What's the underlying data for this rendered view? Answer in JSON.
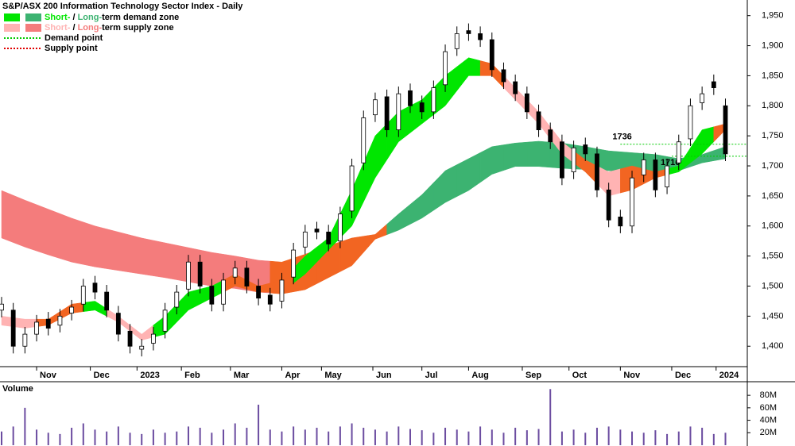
{
  "chart_data": {
    "type": "candlestick",
    "title": "S&P/ASX 200 Information Technology Sector Index - Daily",
    "legend": [
      {
        "parts": [
          "Short-",
          " / ",
          "Long-",
          "term demand zone"
        ],
        "colors": [
          "#00e600",
          "#3cb371"
        ]
      },
      {
        "parts": [
          "Short-",
          " / ",
          "Long-",
          "term supply zone"
        ],
        "colors": [
          "#ffb3b3",
          "#f47c7c"
        ]
      },
      {
        "label": "Demand point",
        "color": "#00cc00"
      },
      {
        "label": "Supply point",
        "color": "#e00000"
      }
    ],
    "xlim": [
      0,
      318
    ],
    "xticks": [
      {
        "value": 15,
        "label": "Nov"
      },
      {
        "value": 38,
        "label": "Dec"
      },
      {
        "value": 58,
        "label": "2023"
      },
      {
        "value": 77,
        "label": "Feb"
      },
      {
        "value": 98,
        "label": "Mar"
      },
      {
        "value": 120,
        "label": "Apr"
      },
      {
        "value": 137,
        "label": "May"
      },
      {
        "value": 159,
        "label": "Jun"
      },
      {
        "value": 180,
        "label": "Jul"
      },
      {
        "value": 200,
        "label": "Aug"
      },
      {
        "value": 223,
        "label": "Sep"
      },
      {
        "value": 243,
        "label": "Oct"
      },
      {
        "value": 265,
        "label": "Nov"
      },
      {
        "value": 287,
        "label": "Dec"
      },
      {
        "value": 306,
        "label": "2024"
      }
    ],
    "ylim": [
      1366,
      1976
    ],
    "yticks": [
      {
        "value": 1400,
        "label": "1,400"
      },
      {
        "value": 1450,
        "label": "1,450"
      },
      {
        "value": 1500,
        "label": "1,500"
      },
      {
        "value": 1550,
        "label": "1,550"
      },
      {
        "value": 1600,
        "label": "1,600"
      },
      {
        "value": 1650,
        "label": "1,650"
      },
      {
        "value": 1700,
        "label": "1,700"
      },
      {
        "value": 1750,
        "label": "1,750"
      },
      {
        "value": 1800,
        "label": "1,800"
      },
      {
        "value": 1850,
        "label": "1,850"
      },
      {
        "value": 1900,
        "label": "1,900"
      },
      {
        "value": 1950,
        "label": "1,950"
      }
    ],
    "x": [
      0,
      5,
      10,
      15,
      20,
      25,
      30,
      35,
      40,
      45,
      50,
      55,
      60,
      65,
      70,
      75,
      80,
      85,
      90,
      95,
      100,
      105,
      110,
      115,
      120,
      125,
      130,
      135,
      140,
      145,
      150,
      155,
      160,
      165,
      170,
      175,
      180,
      185,
      190,
      195,
      200,
      205,
      210,
      215,
      220,
      225,
      230,
      235,
      240,
      245,
      250,
      255,
      260,
      265,
      270,
      275,
      280,
      285,
      290,
      295,
      300,
      305,
      310
    ],
    "open": [
      1460,
      1460,
      1400,
      1420,
      1445,
      1435,
      1455,
      1470,
      1505,
      1490,
      1455,
      1425,
      1395,
      1405,
      1425,
      1465,
      1495,
      1540,
      1500,
      1470,
      1515,
      1530,
      1500,
      1485,
      1475,
      1515,
      1565,
      1595,
      1590,
      1575,
      1625,
      1705,
      1785,
      1815,
      1760,
      1825,
      1805,
      1790,
      1835,
      1895,
      1925,
      1920,
      1910,
      1860,
      1840,
      1820,
      1790,
      1760,
      1740,
      1690,
      1735,
      1720,
      1660,
      1615,
      1600,
      1685,
      1710,
      1665,
      1705,
      1745,
      1805,
      1840,
      1800
    ],
    "high": [
      1482,
      1472,
      1432,
      1452,
      1457,
      1462,
      1477,
      1512,
      1517,
      1502,
      1467,
      1437,
      1412,
      1432,
      1472,
      1502,
      1552,
      1552,
      1512,
      1522,
      1542,
      1542,
      1512,
      1497,
      1522,
      1572,
      1602,
      1607,
      1602,
      1632,
      1712,
      1792,
      1822,
      1827,
      1832,
      1837,
      1817,
      1842,
      1902,
      1932,
      1937,
      1932,
      1922,
      1872,
      1852,
      1832,
      1802,
      1772,
      1752,
      1742,
      1747,
      1732,
      1672,
      1627,
      1692,
      1722,
      1722,
      1712,
      1752,
      1812,
      1832,
      1852,
      1812
    ],
    "low": [
      1448,
      1388,
      1388,
      1408,
      1418,
      1423,
      1443,
      1458,
      1478,
      1448,
      1408,
      1388,
      1383,
      1393,
      1413,
      1453,
      1483,
      1488,
      1458,
      1458,
      1503,
      1488,
      1468,
      1458,
      1463,
      1503,
      1553,
      1578,
      1558,
      1563,
      1613,
      1693,
      1773,
      1748,
      1748,
      1788,
      1778,
      1778,
      1823,
      1883,
      1908,
      1898,
      1848,
      1828,
      1808,
      1778,
      1748,
      1728,
      1668,
      1678,
      1708,
      1648,
      1598,
      1588,
      1588,
      1673,
      1648,
      1653,
      1693,
      1733,
      1793,
      1818,
      1708
    ],
    "close": [
      1470,
      1400,
      1420,
      1440,
      1430,
      1450,
      1465,
      1500,
      1490,
      1460,
      1420,
      1400,
      1400,
      1420,
      1460,
      1490,
      1540,
      1500,
      1470,
      1510,
      1530,
      1500,
      1480,
      1470,
      1510,
      1560,
      1590,
      1590,
      1570,
      1620,
      1700,
      1780,
      1810,
      1760,
      1820,
      1800,
      1790,
      1830,
      1890,
      1920,
      1920,
      1910,
      1860,
      1840,
      1820,
      1790,
      1760,
      1740,
      1680,
      1730,
      1720,
      1660,
      1610,
      1600,
      1680,
      1710,
      1660,
      1700,
      1740,
      1800,
      1820,
      1830,
      1720
    ],
    "band_x": [
      0,
      10,
      20,
      30,
      40,
      50,
      60,
      70,
      80,
      90,
      100,
      110,
      120,
      130,
      140,
      150,
      160,
      170,
      180,
      190,
      200,
      210,
      220,
      230,
      240,
      250,
      260,
      270,
      280,
      290,
      300,
      310
    ],
    "long_band": {
      "upper": [
        1659,
        1643,
        1628,
        1613,
        1600,
        1590,
        1580,
        1572,
        1564,
        1556,
        1550,
        1543,
        1540,
        1553,
        1567,
        1580,
        1586,
        1620,
        1652,
        1692,
        1712,
        1732,
        1738,
        1741,
        1738,
        1732,
        1725,
        1722,
        1719,
        1712,
        1719,
        1732
      ],
      "lower": [
        1580,
        1565,
        1552,
        1540,
        1532,
        1526,
        1520,
        1514,
        1507,
        1500,
        1496,
        1490,
        1487,
        1494,
        1514,
        1534,
        1578,
        1593,
        1613,
        1639,
        1659,
        1686,
        1699,
        1699,
        1696,
        1694,
        1692,
        1690,
        1688,
        1692,
        1705,
        1712
      ],
      "colors": [
        "#f47c7c",
        "#f47c7c",
        "#f47c7c",
        "#f47c7c",
        "#f47c7c",
        "#f47c7c",
        "#f47c7c",
        "#f47c7c",
        "#f47c7c",
        "#f47c7c",
        "#f47c7c",
        "#f47c7c",
        "#f26522",
        "#f26522",
        "#f26522",
        "#f26522",
        "#f26522",
        "#3cb371",
        "#3cb371",
        "#3cb371",
        "#3cb371",
        "#3cb371",
        "#3cb371",
        "#3cb371",
        "#3cb371",
        "#3cb371",
        "#3cb371",
        "#3cb371",
        "#3cb371",
        "#3cb371",
        "#3cb371",
        "#3cb371"
      ]
    },
    "short_band": {
      "upper": [
        1450,
        1445,
        1445,
        1470,
        1475,
        1450,
        1420,
        1450,
        1490,
        1500,
        1520,
        1500,
        1510,
        1550,
        1580,
        1660,
        1750,
        1790,
        1810,
        1850,
        1880,
        1870,
        1830,
        1790,
        1740,
        1710,
        1690,
        1700,
        1690,
        1700,
        1760,
        1770
      ],
      "lower": [
        1435,
        1430,
        1435,
        1455,
        1460,
        1440,
        1410,
        1420,
        1460,
        1480,
        1500,
        1490,
        1490,
        1520,
        1560,
        1600,
        1680,
        1740,
        1770,
        1800,
        1850,
        1850,
        1810,
        1770,
        1720,
        1690,
        1650,
        1660,
        1680,
        1690,
        1720,
        1760
      ],
      "colors": [
        "#ffb3b3",
        "#ffb3b3",
        "#f26522",
        "#f26522",
        "#00e600",
        "#ffb3b3",
        "#ffb3b3",
        "#00e600",
        "#00e600",
        "#00e600",
        "#f26522",
        "#f26522",
        "#f26522",
        "#00e600",
        "#00e600",
        "#00e600",
        "#00e600",
        "#00e600",
        "#00e600",
        "#00e600",
        "#00e600",
        "#f26522",
        "#ffb3b3",
        "#ffb3b3",
        "#ffb3b3",
        "#f26522",
        "#ffb3b3",
        "#f26522",
        "#f26522",
        "#00e600",
        "#00e600",
        "#f26522"
      ]
    },
    "ref_lines": [
      {
        "value": 1736,
        "start": 265,
        "color": "#00cc00"
      },
      {
        "value": 1716,
        "start": 287,
        "color": "#00cc00"
      }
    ],
    "volume": {
      "title": "Volume",
      "color": "#6b4ca0",
      "ylim": [
        0,
        98000000
      ],
      "yticks": [
        {
          "value": 20000000,
          "label": "20M"
        },
        {
          "value": 40000000,
          "label": "40M"
        },
        {
          "value": 60000000,
          "label": "60M"
        },
        {
          "value": 80000000,
          "label": "80M"
        }
      ],
      "values": [
        22000000,
        30000000,
        60000000,
        25000000,
        20000000,
        18000000,
        28000000,
        35000000,
        25000000,
        22000000,
        30000000,
        20000000,
        18000000,
        25000000,
        20000000,
        22000000,
        30000000,
        28000000,
        20000000,
        25000000,
        35000000,
        28000000,
        65000000,
        25000000,
        22000000,
        30000000,
        25000000,
        28000000,
        22000000,
        30000000,
        35000000,
        28000000,
        25000000,
        22000000,
        30000000,
        26000000,
        24000000,
        20000000,
        28000000,
        25000000,
        22000000,
        30000000,
        25000000,
        20000000,
        28000000,
        24000000,
        26000000,
        90000000,
        22000000,
        25000000,
        20000000,
        28000000,
        30000000,
        25000000,
        22000000,
        20000000,
        24000000,
        18000000,
        22000000,
        30000000,
        28000000,
        18000000,
        20000000
      ]
    }
  }
}
